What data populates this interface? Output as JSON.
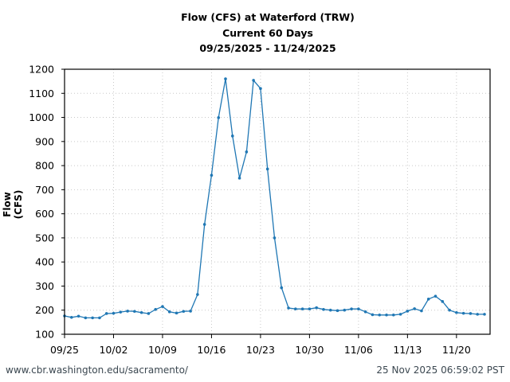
{
  "title": {
    "line1": "Flow (CFS) at Waterford (TRW)",
    "line2": "Current 60 Days",
    "line3": "09/25/2025 - 11/24/2025"
  },
  "footer": {
    "url": "www.cbr.washington.edu/sacramento/",
    "timestamp": "25 Nov 2025 06:59:02 PST"
  },
  "colors": {
    "series": "#1f77b4",
    "grid": "#c8c8c8",
    "axis": "#000000",
    "footer": "#3b4750"
  },
  "chart_data": {
    "type": "line",
    "title": "Flow (CFS) at Waterford (TRW) — Current 60 Days — 09/25/2025 - 11/24/2025",
    "xlabel": "",
    "ylabel": "Flow (CFS)",
    "ylim": [
      100,
      1200
    ],
    "yticks": [
      100,
      200,
      300,
      400,
      500,
      600,
      700,
      800,
      900,
      1000,
      1100,
      1200
    ],
    "xticks": [
      "09/25",
      "10/02",
      "10/09",
      "10/16",
      "10/23",
      "10/30",
      "11/06",
      "11/13",
      "11/20"
    ],
    "xlim_days": [
      0,
      60.8
    ],
    "grid": true,
    "legend": null,
    "series": [
      {
        "name": "Flow (CFS)",
        "start_date": "09/25/2025",
        "values": [
          176,
          170,
          175,
          168,
          168,
          168,
          186,
          187,
          192,
          196,
          195,
          190,
          186,
          203,
          215,
          193,
          188,
          195,
          196,
          265,
          556,
          760,
          999,
          1160,
          923,
          748,
          857,
          1154,
          1120,
          786,
          500,
          293,
          209,
          205,
          205,
          205,
          210,
          203,
          200,
          198,
          200,
          205,
          205,
          193,
          181,
          180,
          180,
          180,
          183,
          196,
          206,
          197,
          246,
          258,
          236,
          200,
          190,
          187,
          186,
          183,
          183
        ]
      }
    ]
  }
}
